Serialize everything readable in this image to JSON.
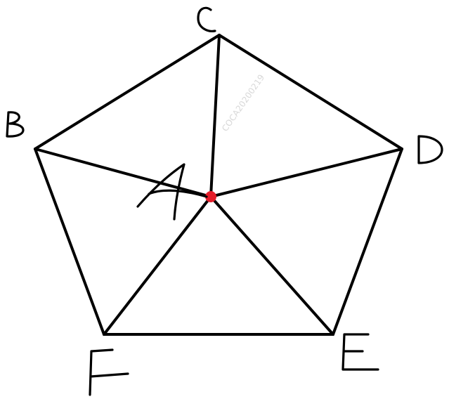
{
  "diagram": {
    "vertices": [
      {
        "label": "A"
      },
      {
        "label": "B"
      },
      {
        "label": "C"
      },
      {
        "label": "D"
      },
      {
        "label": "E"
      },
      {
        "label": "F"
      }
    ],
    "edges": [
      [
        "C",
        "D"
      ],
      [
        "D",
        "E"
      ],
      [
        "E",
        "F"
      ],
      [
        "F",
        "B"
      ],
      [
        "B",
        "C"
      ],
      [
        "A",
        "B"
      ],
      [
        "A",
        "C"
      ],
      [
        "A",
        "D"
      ],
      [
        "A",
        "E"
      ],
      [
        "A",
        "F"
      ]
    ],
    "center_point_color": "#e41d2a",
    "stroke_color": "#000000",
    "watermark": "COCA20200219"
  }
}
